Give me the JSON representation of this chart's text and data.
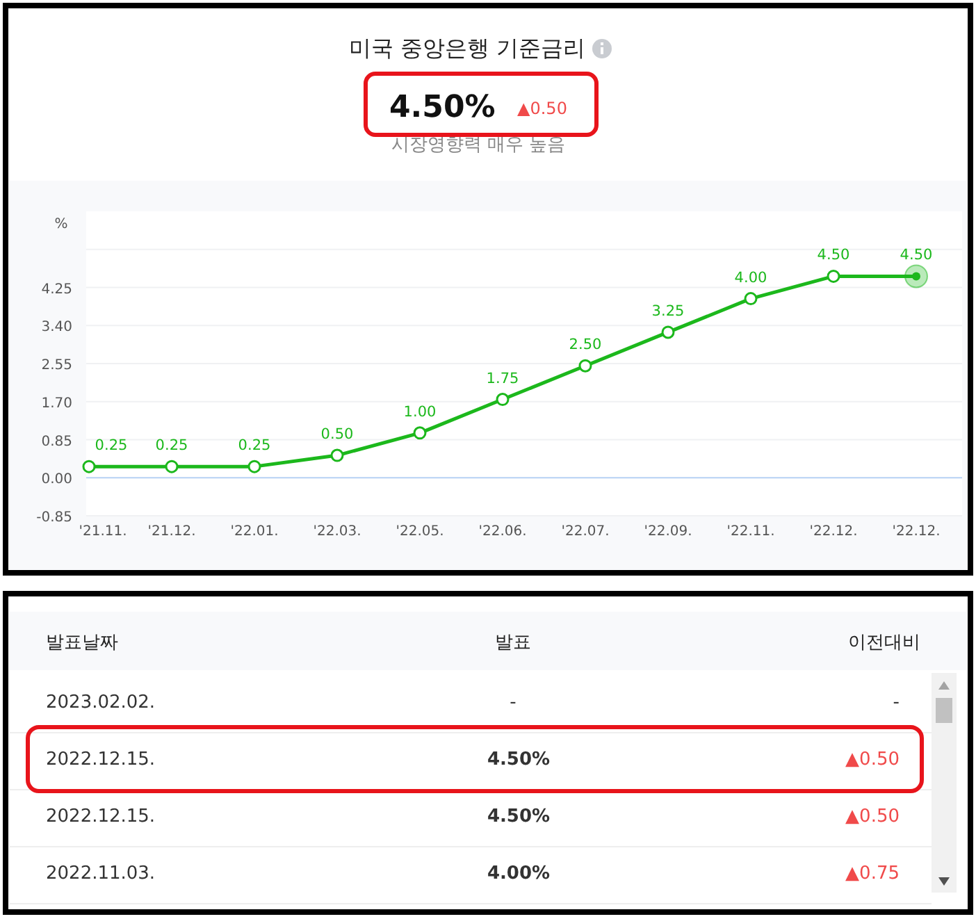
{
  "chart_data": [
    {
      "type": "line",
      "title": "미국 중앙은행 기준금리",
      "subtitle": "4.50%",
      "ylabel": "%",
      "annotations": [
        "▲0.50",
        "시장영향력 매우 높음"
      ],
      "categories": [
        "'21.11.",
        "'21.12.",
        "'22.01.",
        "'22.03.",
        "'22.05.",
        "'22.06.",
        "'22.07.",
        "'22.09.",
        "'22.11.",
        "'22.12.",
        "'22.12."
      ],
      "series": [
        {
          "color": "#1cb81c",
          "values": [
            0.25,
            0.25,
            0.25,
            0.5,
            1.0,
            1.75,
            2.5,
            3.25,
            4.0,
            4.5,
            4.5
          ],
          "value_labels": [
            "0.25",
            "0.25",
            "0.25",
            "0.50",
            "1.00",
            "1.75",
            "2.50",
            "3.25",
            "4.00",
            "4.50",
            "4.50"
          ]
        }
      ],
      "ylim": [
        -0.85,
        5.95
      ],
      "yticks": [
        -0.85,
        {
          "value": 0,
          "label": "0.00"
        },
        0.85,
        {
          "value": 1.7,
          "label": "1.70"
        },
        {
          "value": 2.55,
          "label": "2.55"
        },
        {
          "value": 3.4,
          "label": "3.40"
        },
        4.25,
        {
          "value": 5.1,
          "label": null
        }
      ],
      "ref_lines": [
        {
          "axis": "y",
          "value": 0,
          "color": "#b9d3f5"
        }
      ],
      "grid": "y",
      "marker": "circle",
      "line_style": "solid"
    },
    {
      "type": "other",
      "categories": [
        "발표날짜",
        "발표",
        "이전대비"
      ],
      "cell_labels": [
        [
          "2023.02.02.",
          "-",
          "-"
        ],
        [
          "2022.12.15.",
          "4.50%",
          "▲0.50"
        ],
        [
          "2022.12.15.",
          "4.50%",
          "▲0.50"
        ],
        [
          "2022.11.03.",
          "4.00%",
          "▲0.75"
        ]
      ]
    }
  ]
}
